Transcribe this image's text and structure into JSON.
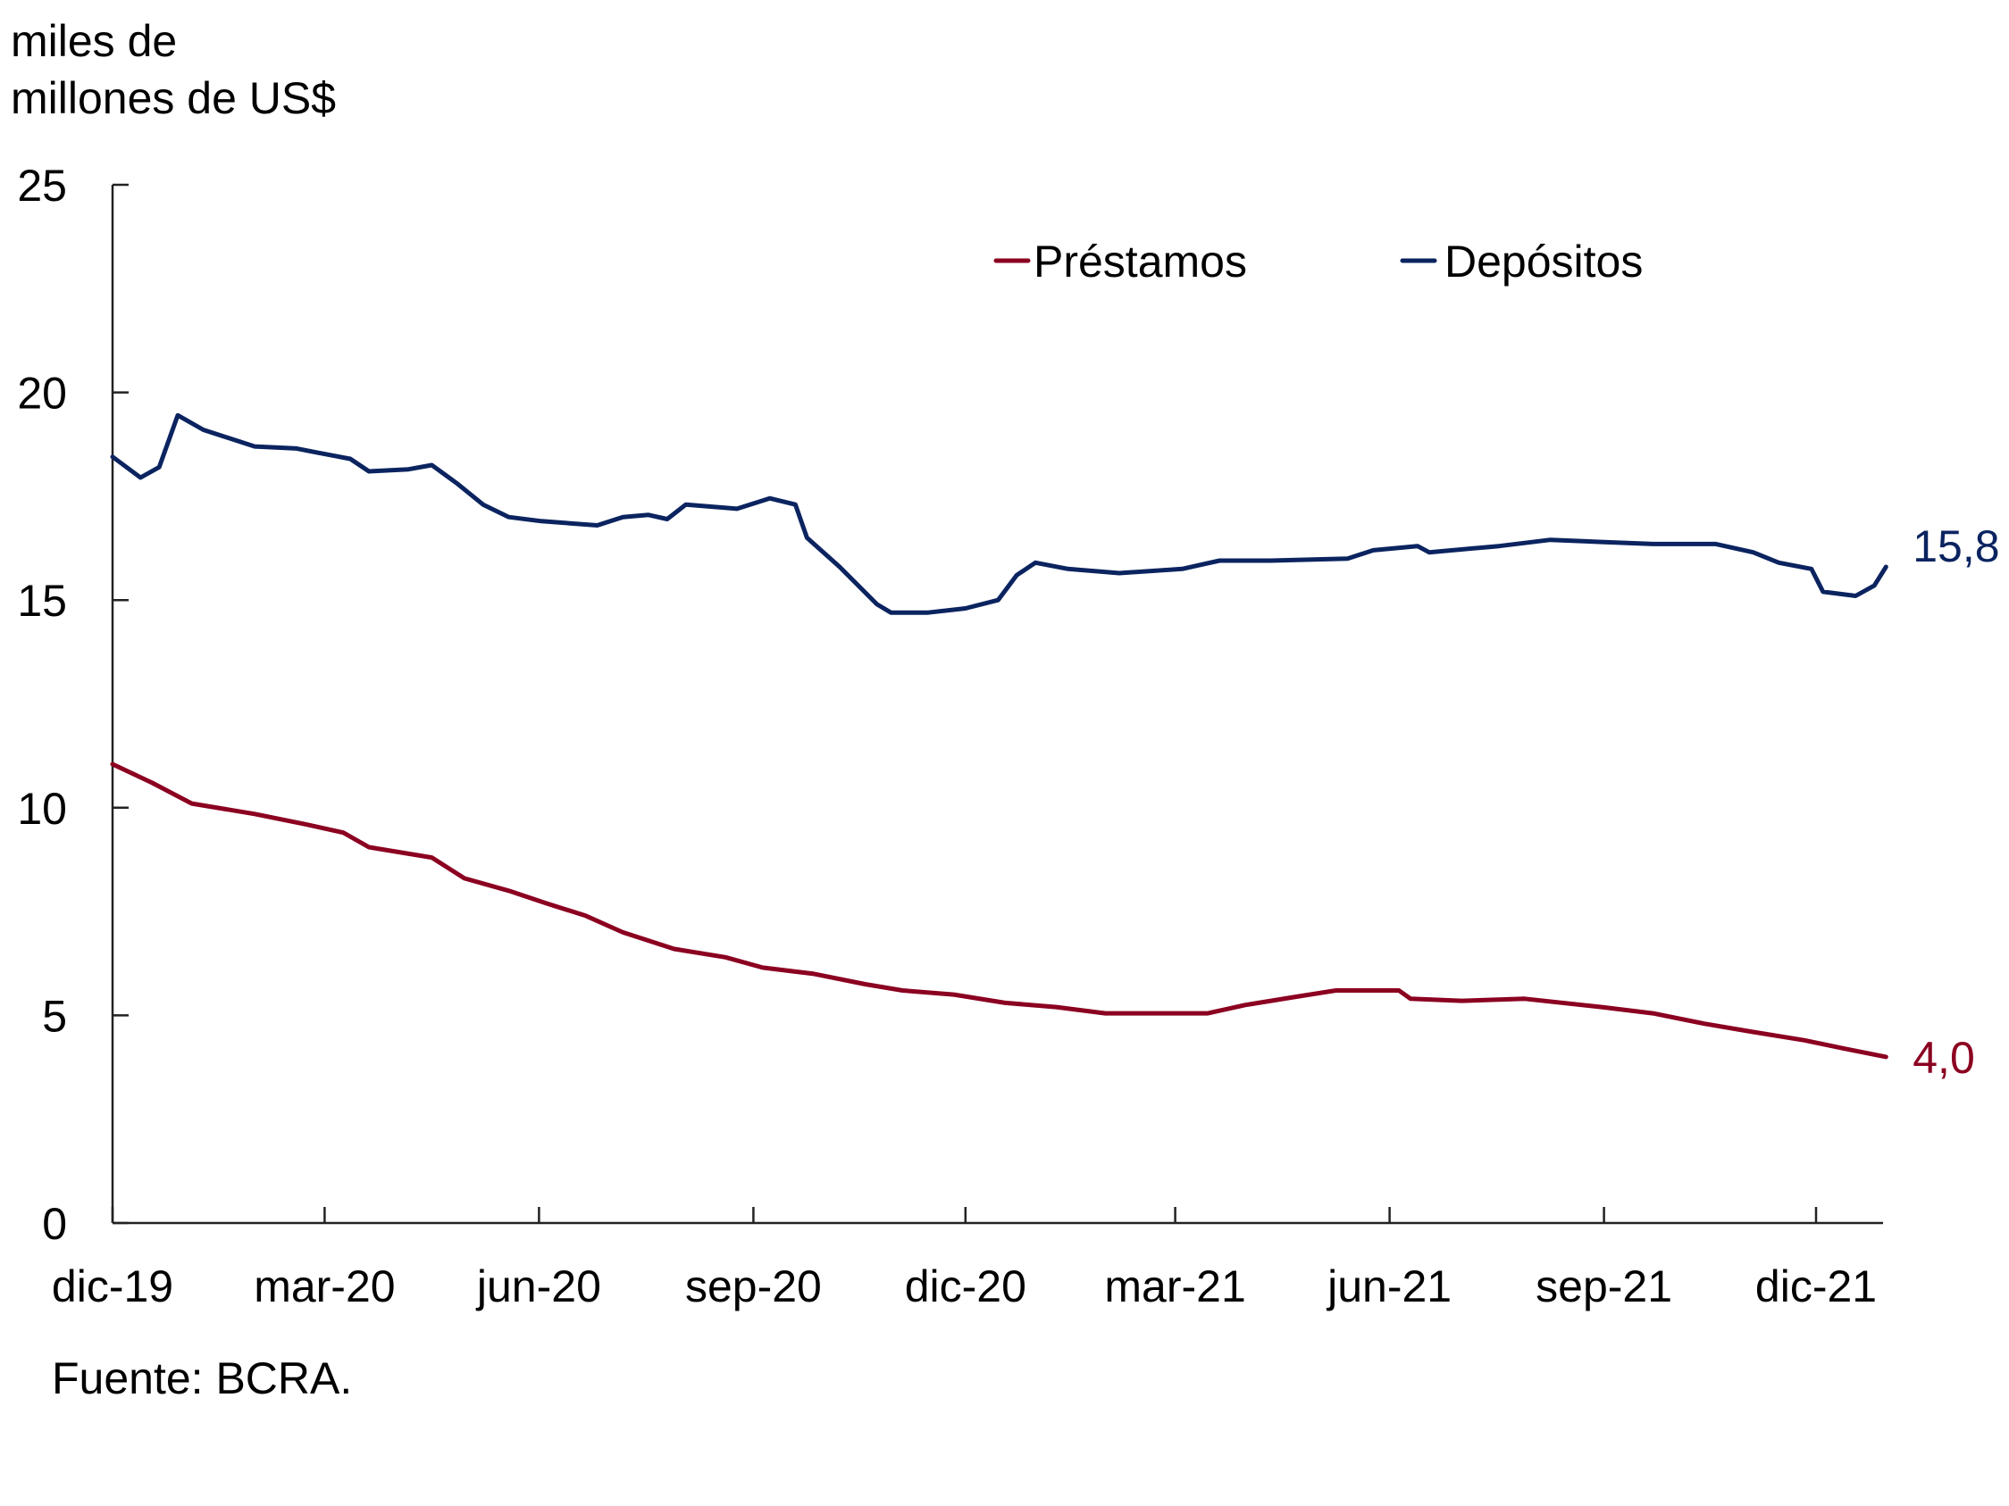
{
  "chart_data": {
    "type": "line",
    "title": "",
    "ylabel_lines": [
      "miles de",
      "millones de US$"
    ],
    "xlabel": "",
    "ylim": [
      0,
      25
    ],
    "yticks": [
      0,
      5,
      10,
      15,
      20,
      25
    ],
    "xlim": [
      "2019-12-01",
      "2021-12-23"
    ],
    "xticks": [
      {
        "date": "2019-12-01",
        "label": "dic-19"
      },
      {
        "date": "2020-03-01",
        "label": "mar-20"
      },
      {
        "date": "2020-06-01",
        "label": "jun-20"
      },
      {
        "date": "2020-09-01",
        "label": "sep-20"
      },
      {
        "date": "2020-12-01",
        "label": "dic-20"
      },
      {
        "date": "2021-03-01",
        "label": "mar-21"
      },
      {
        "date": "2021-06-01",
        "label": "jun-21"
      },
      {
        "date": "2021-09-01",
        "label": "sep-21"
      },
      {
        "date": "2021-12-01",
        "label": "dic-21"
      }
    ],
    "grid": false,
    "legend_position": "top-right",
    "series": [
      {
        "name": "Préstamos",
        "color": "#8B0020",
        "end_label": "4,0",
        "x": [
          "2019-12-01",
          "2019-12-18",
          "2020-01-04",
          "2020-01-31",
          "2020-02-22",
          "2020-03-09",
          "2020-03-20",
          "2020-04-16",
          "2020-04-30",
          "2020-05-19",
          "2020-06-04",
          "2020-06-21",
          "2020-07-07",
          "2020-07-29",
          "2020-08-20",
          "2020-09-05",
          "2020-09-27",
          "2020-10-19",
          "2020-11-04",
          "2020-11-26",
          "2020-12-18",
          "2021-01-09",
          "2021-01-30",
          "2021-02-16",
          "2021-03-15",
          "2021-03-31",
          "2021-04-22",
          "2021-05-09",
          "2021-06-05",
          "2021-06-10",
          "2021-07-02",
          "2021-07-29",
          "2021-08-31",
          "2021-09-22",
          "2021-10-14",
          "2021-11-04",
          "2021-11-26",
          "2021-12-13",
          "2021-12-31"
        ],
        "values": [
          11.05,
          10.6,
          10.1,
          9.85,
          9.6,
          9.4,
          9.05,
          8.8,
          8.3,
          8.0,
          7.7,
          7.4,
          7.0,
          6.6,
          6.4,
          6.15,
          6.0,
          5.75,
          5.6,
          5.5,
          5.3,
          5.2,
          5.05,
          5.05,
          5.05,
          5.25,
          5.45,
          5.6,
          5.6,
          5.4,
          5.35,
          5.4,
          5.2,
          5.05,
          4.8,
          4.6,
          4.4,
          4.2,
          4.0
        ]
      },
      {
        "name": "Depósitos",
        "color": "#0B2460",
        "end_label": "15,8",
        "x": [
          "2019-12-01",
          "2019-12-13",
          "2019-12-21",
          "2019-12-29",
          "2020-01-09",
          "2020-01-31",
          "2020-02-18",
          "2020-02-27",
          "2020-03-12",
          "2020-03-20",
          "2020-04-06",
          "2020-04-16",
          "2020-04-27",
          "2020-05-08",
          "2020-05-19",
          "2020-06-02",
          "2020-06-26",
          "2020-07-07",
          "2020-07-18",
          "2020-07-26",
          "2020-08-03",
          "2020-08-25",
          "2020-09-08",
          "2020-09-19",
          "2020-09-24",
          "2020-10-08",
          "2020-10-24",
          "2020-10-30",
          "2020-11-15",
          "2020-12-01",
          "2020-12-15",
          "2020-12-23",
          "2020-12-31",
          "2021-01-14",
          "2021-02-05",
          "2021-03-04",
          "2021-03-20",
          "2021-04-11",
          "2021-05-14",
          "2021-05-25",
          "2021-06-13",
          "2021-06-18",
          "2021-07-18",
          "2021-08-09",
          "2021-08-31",
          "2021-09-22",
          "2021-10-19",
          "2021-11-04",
          "2021-11-15",
          "2021-11-29",
          "2021-12-04",
          "2021-12-18",
          "2021-12-26",
          "2021-12-31"
        ],
        "values": [
          18.45,
          17.95,
          18.2,
          19.45,
          19.1,
          18.7,
          18.65,
          18.55,
          18.4,
          18.1,
          18.15,
          18.25,
          17.8,
          17.3,
          17.0,
          16.9,
          16.8,
          17.0,
          17.05,
          16.95,
          17.3,
          17.2,
          17.45,
          17.3,
          16.5,
          15.8,
          14.9,
          14.7,
          14.7,
          14.8,
          15.0,
          15.6,
          15.9,
          15.75,
          15.65,
          15.75,
          15.95,
          15.95,
          16.0,
          16.2,
          16.3,
          16.15,
          16.3,
          16.45,
          16.4,
          16.35,
          16.35,
          16.15,
          15.9,
          15.75,
          15.2,
          15.1,
          15.35,
          15.8
        ]
      }
    ],
    "source": "Fuente: BCRA."
  }
}
